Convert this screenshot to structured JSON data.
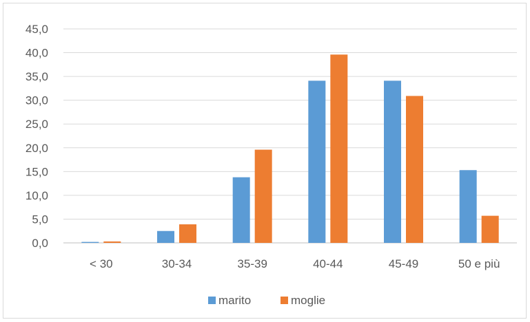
{
  "chart_data": {
    "type": "bar",
    "categories": [
      "< 30",
      "30-34",
      "35-39",
      "40-44",
      "45-49",
      "50 e più"
    ],
    "series": [
      {
        "name": "marito",
        "values": [
          0.2,
          2.5,
          13.8,
          34.1,
          34.1,
          15.3
        ],
        "color": "#5b9bd5"
      },
      {
        "name": "moglie",
        "values": [
          0.3,
          3.9,
          19.6,
          39.6,
          30.9,
          5.7
        ],
        "color": "#ed7d31"
      }
    ],
    "yticks": [
      "0,0",
      "5,0",
      "10,0",
      "15,0",
      "20,0",
      "25,0",
      "30,0",
      "35,0",
      "40,0",
      "45,0"
    ],
    "ylim": [
      0,
      45
    ],
    "grid": true,
    "legend": "bottom"
  }
}
